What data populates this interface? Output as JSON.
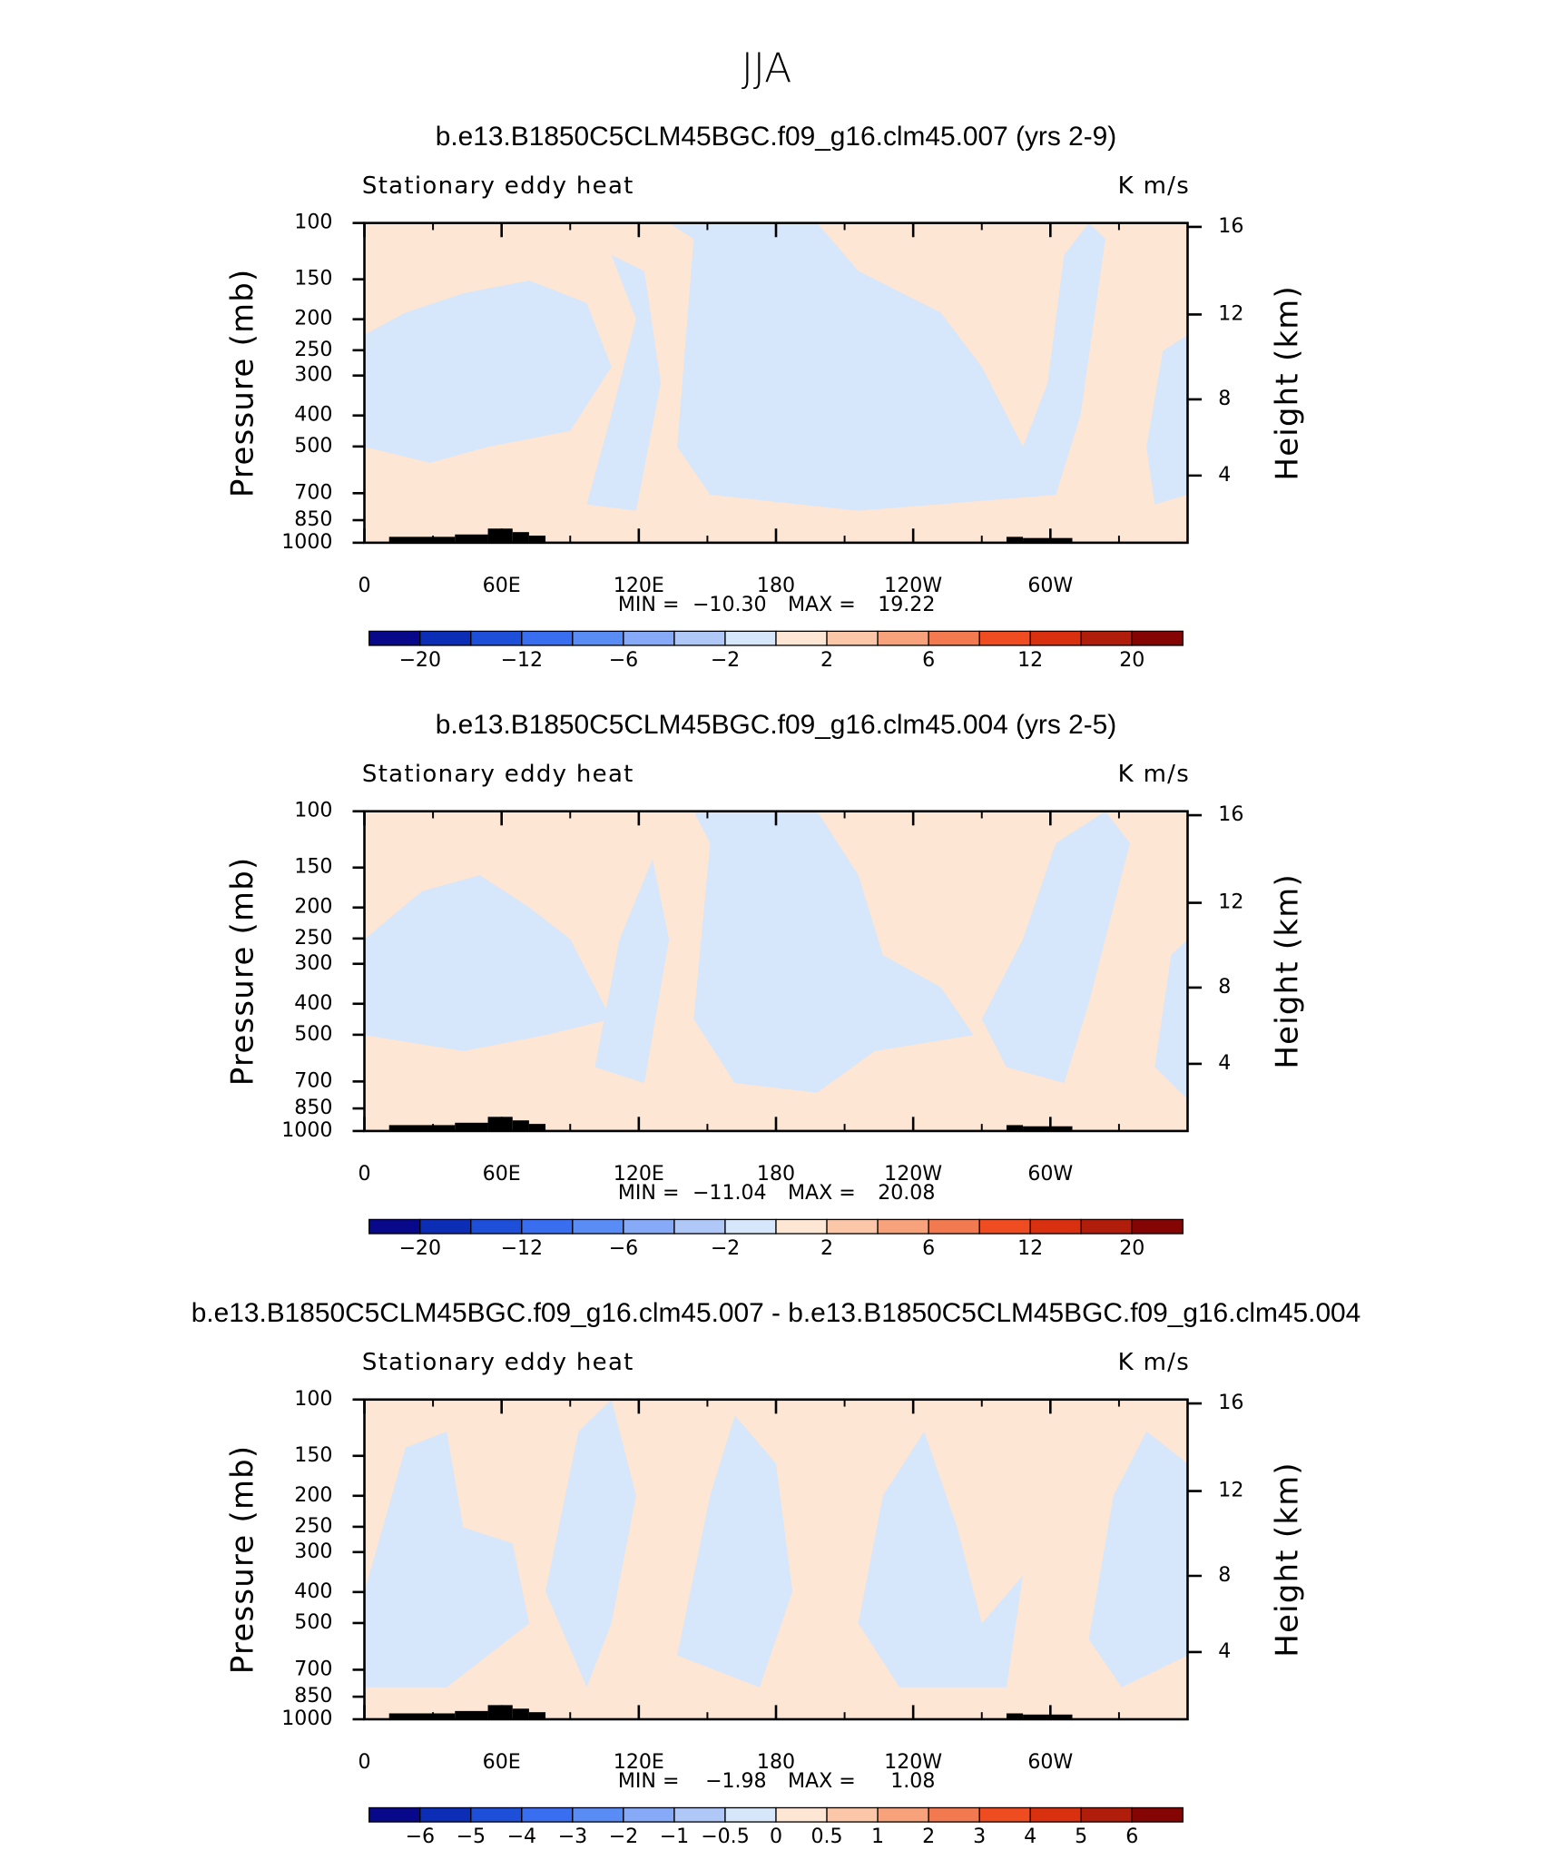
{
  "suptitle": "JJA",
  "chart_data": [
    {
      "type": "contour",
      "title": "b.e13.B1850C5CLM45BGC.f09_g16.clm45.007 (yrs 2-9)",
      "left_label": "Stationary eddy heat",
      "right_label": "K m/s",
      "ylabel": "Pressure (mb)",
      "y2label": "Height (km)",
      "xlim": [
        0,
        360
      ],
      "xticks": [
        0,
        {
          "value": 60,
          "label": "60E"
        },
        {
          "value": 120,
          "label": "120E"
        },
        180,
        {
          "value": 240,
          "label": "120W"
        },
        {
          "value": 300,
          "label": "60W"
        }
      ],
      "xminorticks": [
        30,
        90,
        150,
        210,
        270,
        330
      ],
      "ylim": [
        1000,
        100
      ],
      "log_y": true,
      "yticks": [
        100,
        150,
        200,
        250,
        300,
        400,
        500,
        700,
        850,
        1000
      ],
      "y2ticks": [
        4,
        8,
        12,
        16
      ],
      "min_text": "MIN =",
      "min": {
        "value": -10.3,
        "label": "−10.30"
      },
      "max_text": "MAX =",
      "max": {
        "value": 19.22,
        "label": "19.22"
      },
      "colors": [
        "#08088a",
        "#0c2db5",
        "#1e4fd8",
        "#3a6ef0",
        "#5a8cf5",
        "#86aaf7",
        "#b0c8f8",
        "#d6e6fb",
        "#fde6d4",
        "#fbc7a8",
        "#f7a27a",
        "#f37a50",
        "#ef4c22",
        "#d9300f",
        "#b01d0b",
        "#850505"
      ],
      "colorbar_labels": [
        {
          "value": -20,
          "label": "−20"
        },
        {
          "value": -12,
          "label": "−12"
        },
        {
          "value": -6,
          "label": "−6"
        },
        {
          "value": -2,
          "label": "−2"
        },
        2,
        6,
        12,
        20
      ]
    },
    {
      "type": "contour",
      "title": "b.e13.B1850C5CLM45BGC.f09_g16.clm45.004 (yrs 2-5)",
      "left_label": "Stationary eddy heat",
      "right_label": "K m/s",
      "ylabel": "Pressure (mb)",
      "y2label": "Height (km)",
      "xlim": [
        0,
        360
      ],
      "xticks": [
        0,
        {
          "value": 60,
          "label": "60E"
        },
        {
          "value": 120,
          "label": "120E"
        },
        180,
        {
          "value": 240,
          "label": "120W"
        },
        {
          "value": 300,
          "label": "60W"
        }
      ],
      "xminorticks": [
        30,
        90,
        150,
        210,
        270,
        330
      ],
      "ylim": [
        1000,
        100
      ],
      "log_y": true,
      "yticks": [
        100,
        150,
        200,
        250,
        300,
        400,
        500,
        700,
        850,
        1000
      ],
      "y2ticks": [
        4,
        8,
        12,
        16
      ],
      "min_text": "MIN =",
      "min": {
        "value": -11.04,
        "label": "−11.04"
      },
      "max_text": "MAX =",
      "max": {
        "value": 20.08,
        "label": "20.08"
      },
      "colors": [
        "#08088a",
        "#0c2db5",
        "#1e4fd8",
        "#3a6ef0",
        "#5a8cf5",
        "#86aaf7",
        "#b0c8f8",
        "#d6e6fb",
        "#fde6d4",
        "#fbc7a8",
        "#f7a27a",
        "#f37a50",
        "#ef4c22",
        "#d9300f",
        "#b01d0b",
        "#850505"
      ],
      "colorbar_labels": [
        {
          "value": -20,
          "label": "−20"
        },
        {
          "value": -12,
          "label": "−12"
        },
        {
          "value": -6,
          "label": "−6"
        },
        {
          "value": -2,
          "label": "−2"
        },
        2,
        6,
        12,
        20
      ]
    },
    {
      "type": "contour",
      "title": "b.e13.B1850C5CLM45BGC.f09_g16.clm45.007 - b.e13.B1850C5CLM45BGC.f09_g16.clm45.004",
      "left_label": "Stationary eddy heat",
      "right_label": "K m/s",
      "ylabel": "Pressure (mb)",
      "y2label": "Height (km)",
      "xlim": [
        0,
        360
      ],
      "xticks": [
        0,
        {
          "value": 60,
          "label": "60E"
        },
        {
          "value": 120,
          "label": "120E"
        },
        180,
        {
          "value": 240,
          "label": "120W"
        },
        {
          "value": 300,
          "label": "60W"
        }
      ],
      "xminorticks": [
        30,
        90,
        150,
        210,
        270,
        330
      ],
      "ylim": [
        1000,
        100
      ],
      "log_y": true,
      "yticks": [
        100,
        150,
        200,
        250,
        300,
        400,
        500,
        700,
        850,
        1000
      ],
      "y2ticks": [
        4,
        8,
        12,
        16
      ],
      "min_text": "MIN =",
      "min": {
        "value": -1.98,
        "label": "−1.98"
      },
      "max_text": "MAX =",
      "max": {
        "value": 1.08,
        "label": "1.08"
      },
      "colors": [
        "#08088a",
        "#0c2db5",
        "#1e4fd8",
        "#3a6ef0",
        "#5a8cf5",
        "#86aaf7",
        "#b0c8f8",
        "#d6e6fb",
        "#fde6d4",
        "#fbc7a8",
        "#f7a27a",
        "#f37a50",
        "#ef4c22",
        "#d9300f",
        "#b01d0b",
        "#850505"
      ],
      "colorbar_labels": [
        {
          "value": -6,
          "label": "−6"
        },
        {
          "value": -5,
          "label": "−5"
        },
        {
          "value": -4,
          "label": "−4"
        },
        {
          "value": -3,
          "label": "−3"
        },
        {
          "value": -2,
          "label": "−2"
        },
        {
          "value": -1,
          "label": "−1"
        },
        {
          "value": -0.5,
          "label": "−0.5"
        },
        0,
        0.5,
        1,
        2,
        3,
        4,
        5,
        6
      ]
    }
  ]
}
